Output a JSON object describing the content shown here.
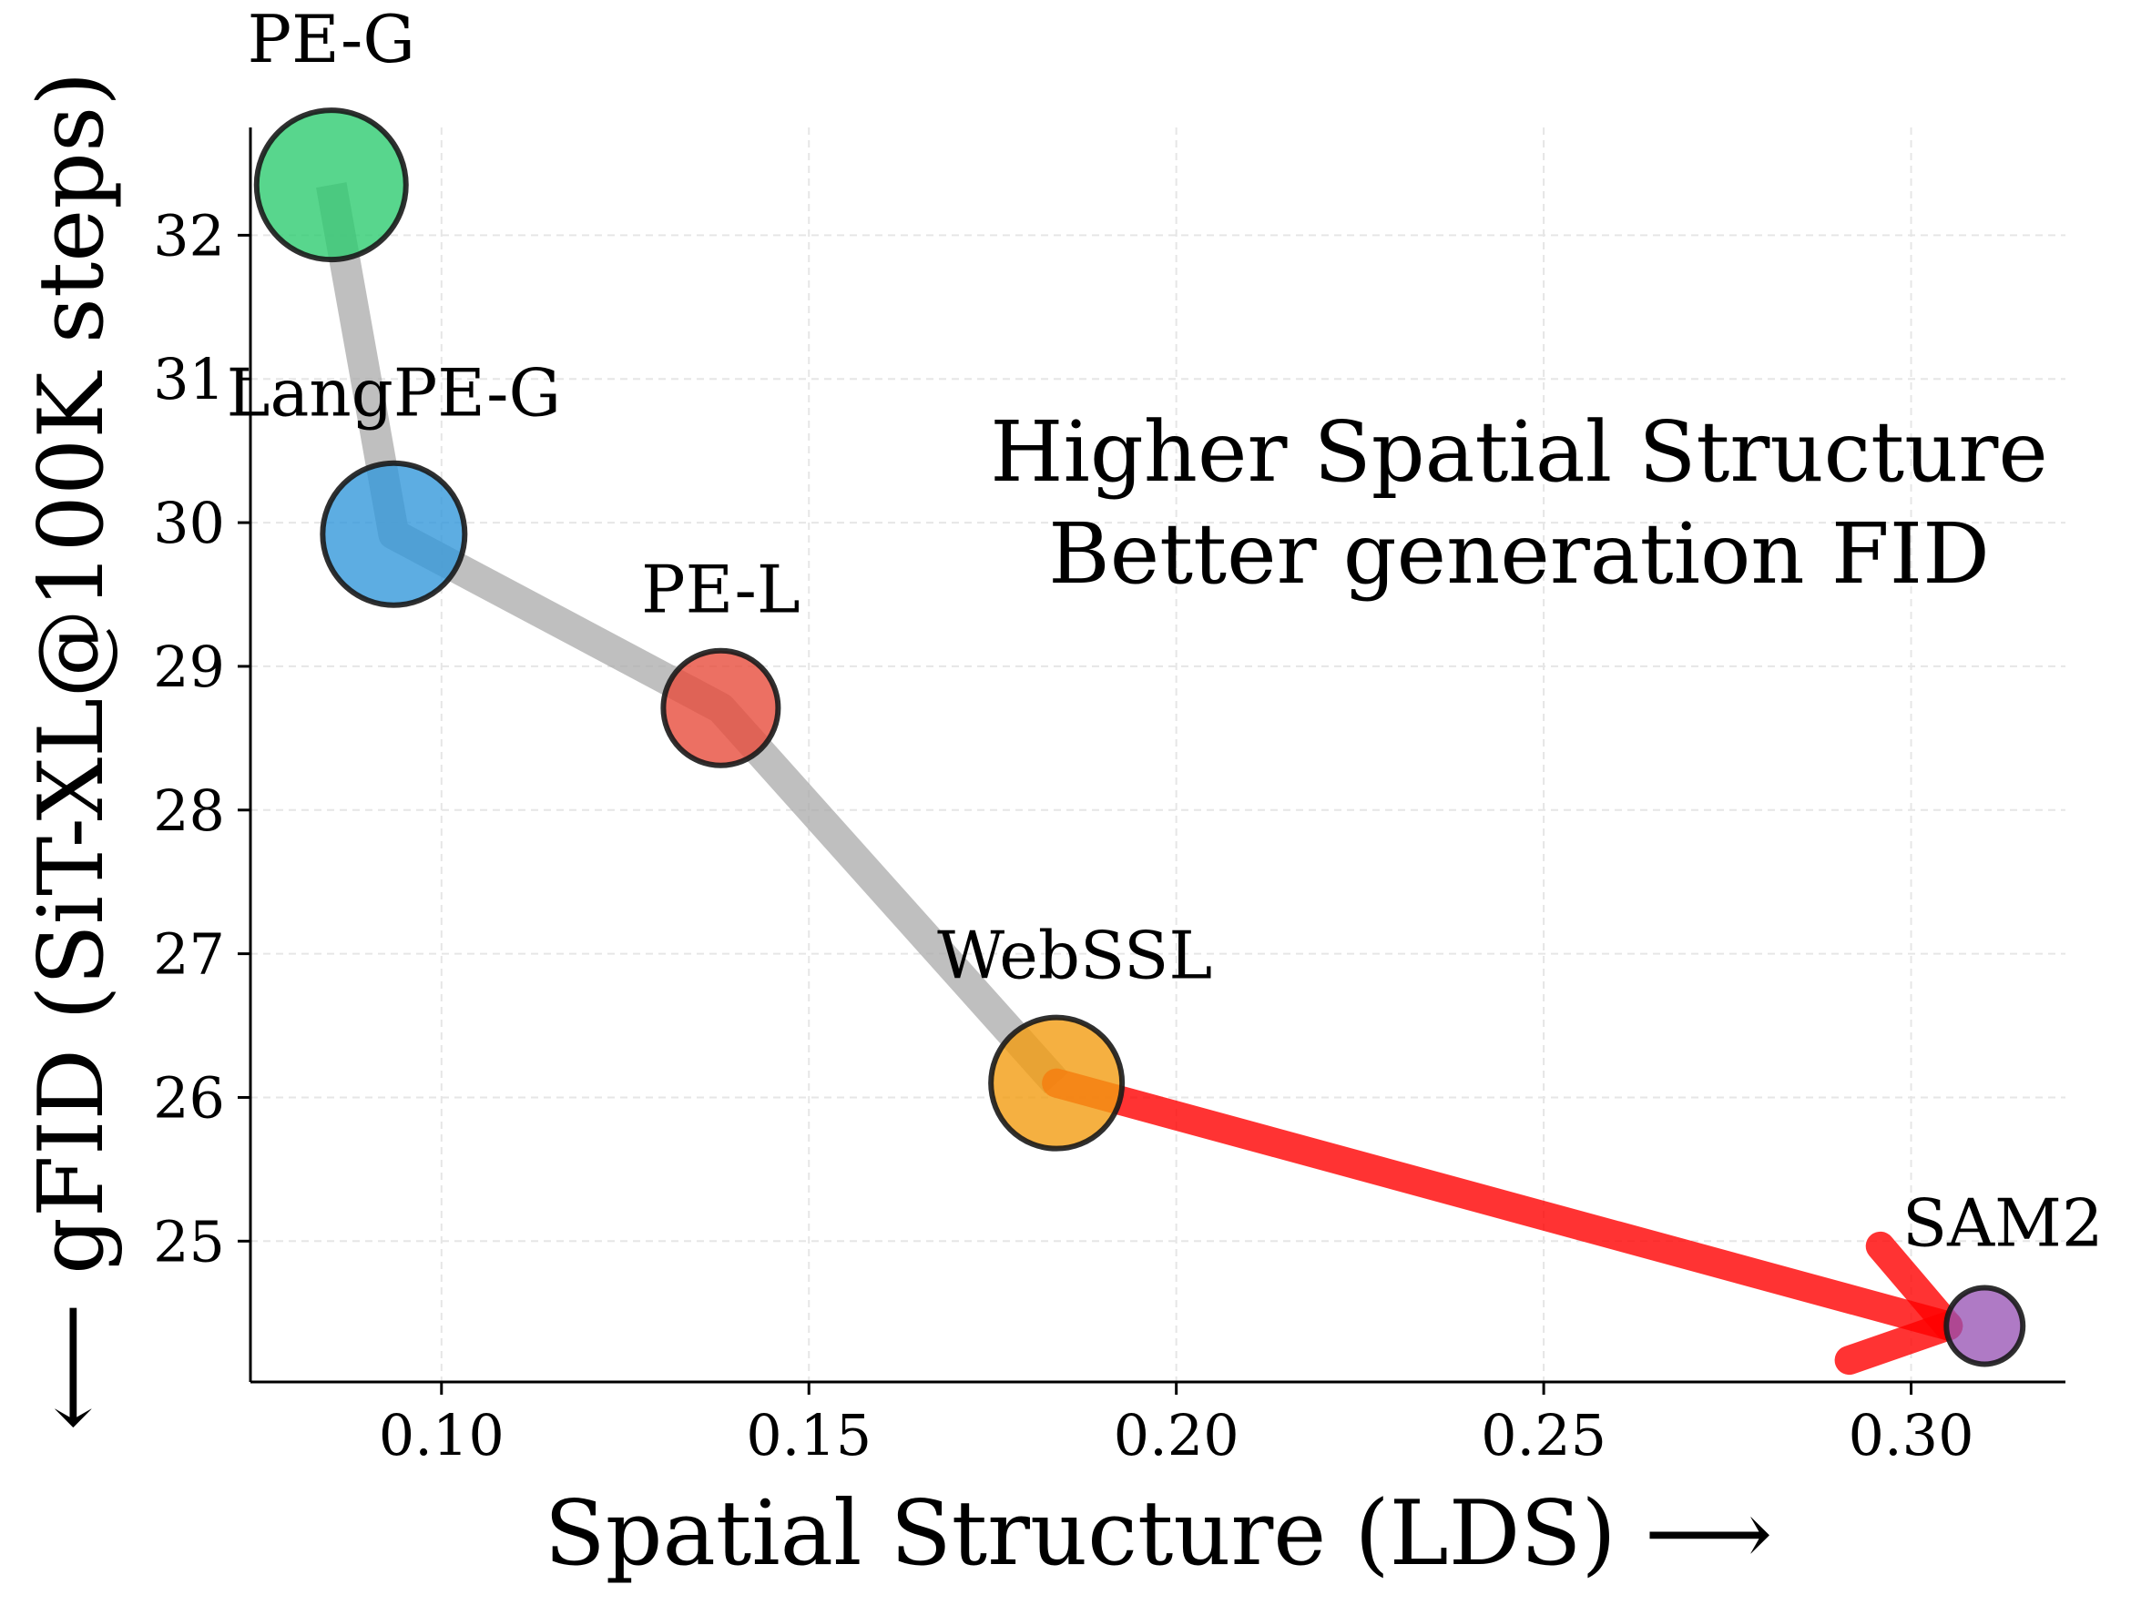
{
  "chart_data": {
    "type": "scatter",
    "title": "",
    "xlabel": "Spatial Structure (LDS) ⟶",
    "ylabel": "⟵ gFID (SiT-XL@100K steps)",
    "xlim": [
      0.074,
      0.321
    ],
    "ylim": [
      24.02,
      32.75
    ],
    "xticks": [
      0.1,
      0.15,
      0.2,
      0.25,
      0.3
    ],
    "xtick_labels": [
      "0.10",
      "0.15",
      "0.20",
      "0.25",
      "0.30"
    ],
    "yticks": [
      25,
      26,
      27,
      28,
      29,
      30,
      31,
      32
    ],
    "ytick_labels": [
      "25",
      "26",
      "27",
      "28",
      "29",
      "30",
      "31",
      "32"
    ],
    "grid": true,
    "points": [
      {
        "label": "PE-G",
        "x": 0.085,
        "y": 32.35,
        "color": "#2ecc71"
      },
      {
        "label": "LangPE-G",
        "x": 0.0935,
        "y": 29.92,
        "color": "#3498db"
      },
      {
        "label": "PE-L",
        "x": 0.138,
        "y": 28.71,
        "color": "#e74c3c"
      },
      {
        "label": "WebSSL",
        "x": 0.1837,
        "y": 26.1,
        "color": "#f39c12"
      },
      {
        "label": "SAM2",
        "x": 0.31,
        "y": 24.41,
        "color": "#9b59b6"
      }
    ],
    "trend_line_color": "#aaaaaa",
    "arrow": {
      "from": "WebSSL",
      "to": "SAM2",
      "color": "#ff0000"
    },
    "annotation": [
      "Higher Spatial Structure",
      "Better generation FID"
    ]
  }
}
